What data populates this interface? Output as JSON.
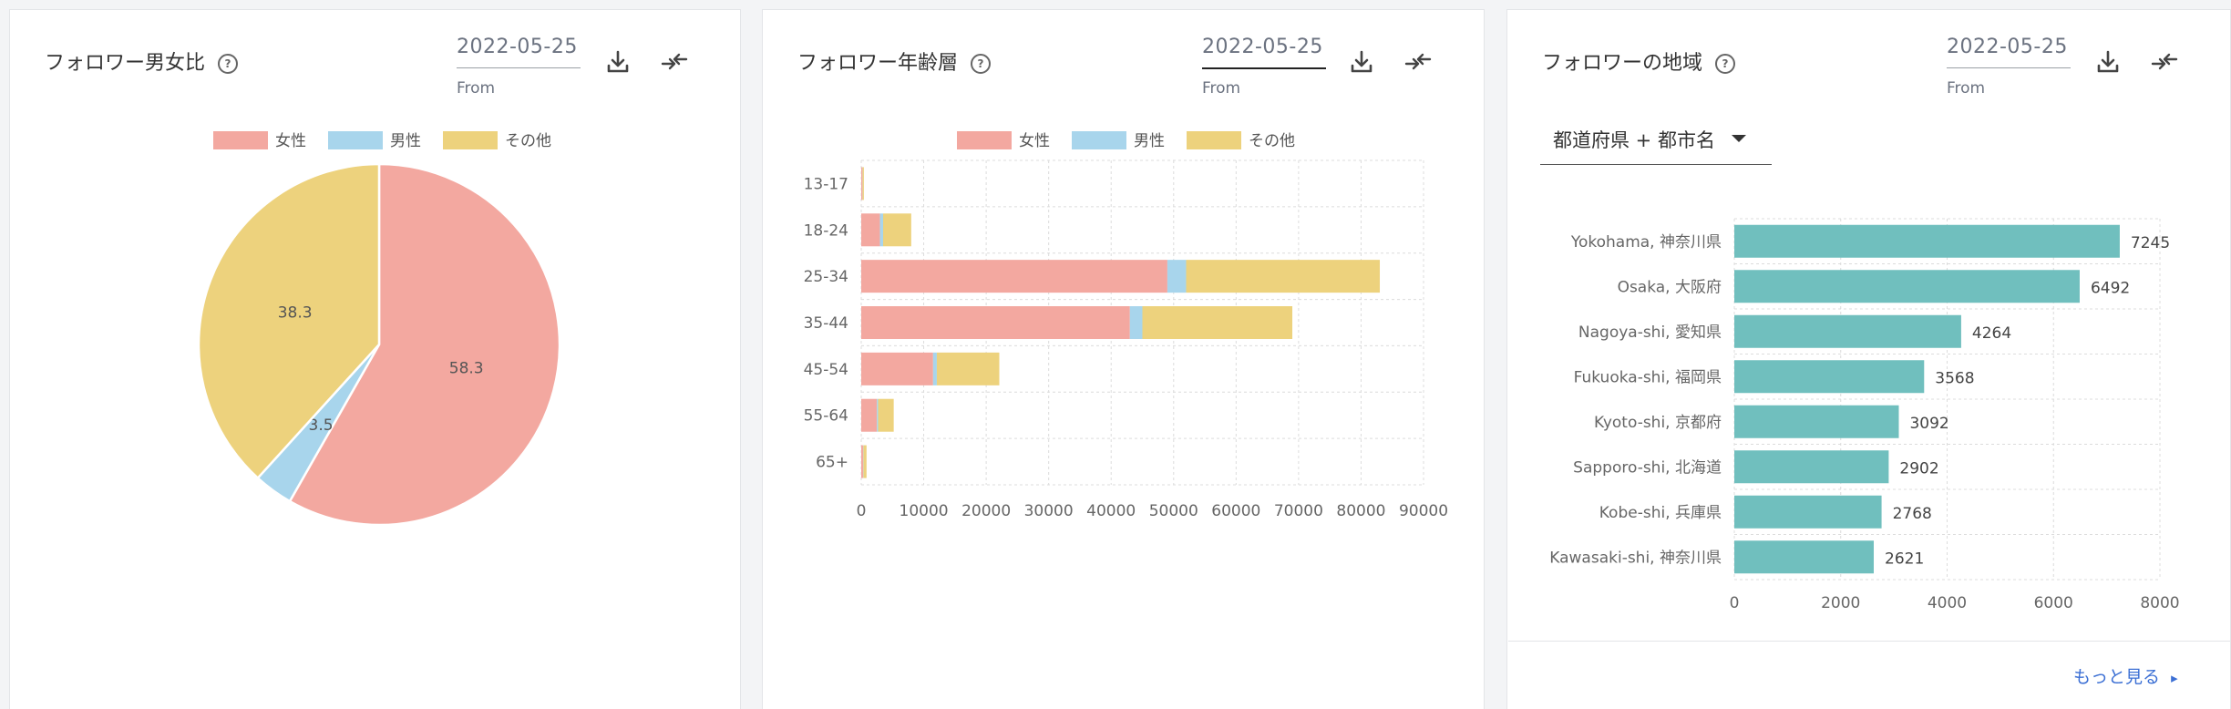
{
  "cards": {
    "gender": {
      "title": "フォロワー男女比",
      "date": "2022-05-25",
      "date_label": "From"
    },
    "age": {
      "title": "フォロワー年齢層",
      "date": "2022-05-25",
      "date_label": "From"
    },
    "region": {
      "title": "フォロワーの地域",
      "date": "2022-05-25",
      "date_label": "From"
    }
  },
  "help_glyph": "?",
  "region_select": {
    "value": "都道府県 + 都市名"
  },
  "more_link": {
    "label": "もっと見る",
    "arrow": "▸"
  },
  "colors": {
    "female": "#f3a8a0",
    "male": "#a8d5ec",
    "other": "#edd27d",
    "region_bar": "#70bfbe"
  },
  "chart_data": [
    {
      "type": "pie",
      "legend": [
        "女性",
        "男性",
        "その他"
      ],
      "legend_position": "top",
      "slices": [
        {
          "label": "女性",
          "value": 58.3
        },
        {
          "label": "男性",
          "value": 3.5
        },
        {
          "label": "その他",
          "value": 38.3
        }
      ]
    },
    {
      "type": "bar",
      "orientation": "horizontal",
      "stacked": true,
      "legend": [
        "女性",
        "男性",
        "その他"
      ],
      "legend_position": "top",
      "categories": [
        "13-17",
        "18-24",
        "25-34",
        "35-44",
        "45-54",
        "55-64",
        "65+"
      ],
      "series": [
        {
          "name": "女性",
          "values": [
            200,
            3000,
            49000,
            43000,
            11500,
            2500,
            300
          ]
        },
        {
          "name": "男性",
          "values": [
            20,
            500,
            3000,
            2000,
            600,
            200,
            50
          ]
        },
        {
          "name": "その他",
          "values": [
            200,
            4500,
            31000,
            24000,
            10000,
            2500,
            500
          ]
        }
      ],
      "xticks": [
        "0",
        "10000",
        "20000",
        "30000",
        "40000",
        "50000",
        "60000",
        "70000",
        "80000",
        "90000"
      ],
      "xlim": [
        0,
        90000
      ],
      "grid": true
    },
    {
      "type": "bar",
      "orientation": "horizontal",
      "categories": [
        "Yokohama, 神奈川県",
        "Osaka, 大阪府",
        "Nagoya-shi, 愛知県",
        "Fukuoka-shi, 福岡県",
        "Kyoto-shi, 京都府",
        "Sapporo-shi, 北海道",
        "Kobe-shi, 兵庫県",
        "Kawasaki-shi, 神奈川県"
      ],
      "values": [
        7245,
        6492,
        4264,
        3568,
        3092,
        2902,
        2768,
        2621
      ],
      "xticks": [
        "0",
        "2000",
        "4000",
        "6000",
        "8000"
      ],
      "xlim": [
        0,
        8000
      ],
      "grid": true
    }
  ]
}
